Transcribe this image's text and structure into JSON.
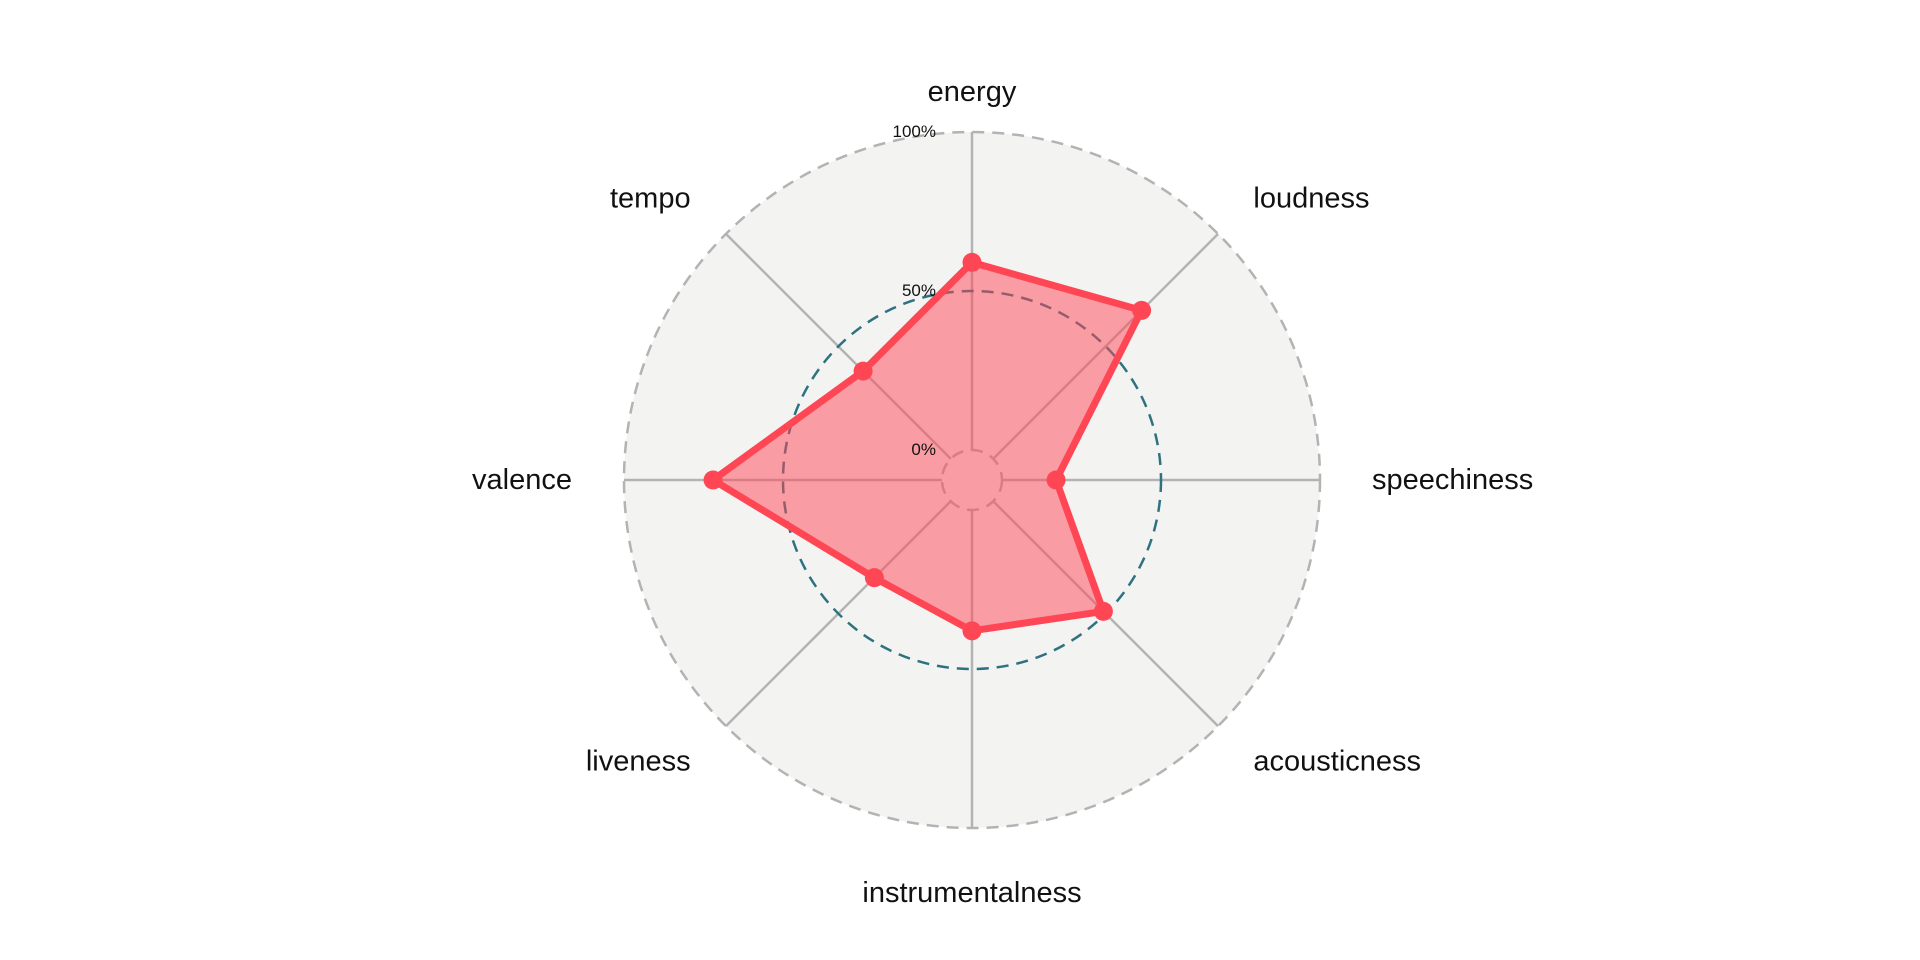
{
  "chart_data": {
    "type": "radar",
    "axes": [
      "energy",
      "loudness",
      "speechiness",
      "acousticness",
      "instrumentalness",
      "liveness",
      "valence",
      "tempo"
    ],
    "values": [
      0.59,
      0.66,
      0.17,
      0.49,
      0.38,
      0.34,
      0.72,
      0.39
    ],
    "range": [
      0,
      1
    ],
    "grid_levels": [
      0,
      0.5,
      1
    ],
    "grid_labels": [
      "0%",
      "50%",
      "100%"
    ],
    "colors": {
      "series": "#ff4655",
      "fill": "#f7999f",
      "background": "#f3f3f2",
      "spokes": "#b3b3b3",
      "outer_ring": "#b3b3b3",
      "mid_ring": "#2e7280",
      "inner_ring": "#b3b3b3"
    }
  }
}
